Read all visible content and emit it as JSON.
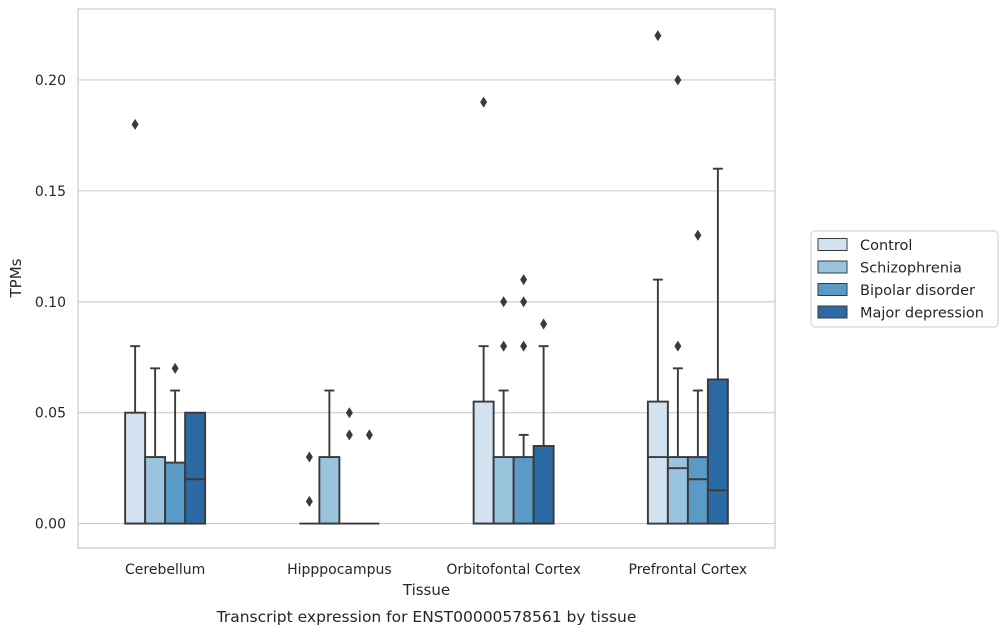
{
  "caption": "Transcript expression for ENST00000578561 by tissue",
  "chart_data": {
    "type": "box",
    "xlabel": "Tissue",
    "ylabel": "TPMs",
    "ylim": [
      -0.011,
      0.232
    ],
    "yticks": [
      "0.00",
      "0.05",
      "0.10",
      "0.15",
      "0.20"
    ],
    "grid": true,
    "legend_position": "right",
    "categories": [
      "Cerebellum",
      "Hipppocampus",
      "Orbitofontal Cortex",
      "Prefrontal Cortex"
    ],
    "series": [
      {
        "name": "Control",
        "color": "#d2e2f1",
        "boxes": [
          {
            "q1": 0.0,
            "median": 0.0,
            "q3": 0.05,
            "whisker_low": 0.0,
            "whisker_high": 0.08,
            "outliers": [
              0.18
            ]
          },
          {
            "q1": 0.0,
            "median": 0.0,
            "q3": 0.0,
            "whisker_low": 0.0,
            "whisker_high": 0.0,
            "outliers": [
              0.01,
              0.03
            ]
          },
          {
            "q1": 0.0,
            "median": 0.0,
            "q3": 0.055,
            "whisker_low": 0.0,
            "whisker_high": 0.08,
            "outliers": [
              0.19
            ]
          },
          {
            "q1": 0.0,
            "median": 0.03,
            "q3": 0.055,
            "whisker_low": 0.0,
            "whisker_high": 0.11,
            "outliers": [
              0.22
            ]
          }
        ]
      },
      {
        "name": "Schizophrenia",
        "color": "#9ac3de",
        "boxes": [
          {
            "q1": 0.0,
            "median": 0.0,
            "q3": 0.03,
            "whisker_low": 0.0,
            "whisker_high": 0.07,
            "outliers": []
          },
          {
            "q1": 0.0,
            "median": 0.0,
            "q3": 0.03,
            "whisker_low": 0.0,
            "whisker_high": 0.06,
            "outliers": []
          },
          {
            "q1": 0.0,
            "median": 0.0,
            "q3": 0.03,
            "whisker_low": 0.0,
            "whisker_high": 0.06,
            "outliers": [
              0.08,
              0.1
            ]
          },
          {
            "q1": 0.0,
            "median": 0.025,
            "q3": 0.03,
            "whisker_low": 0.0,
            "whisker_high": 0.07,
            "outliers": [
              0.08,
              0.2
            ]
          }
        ]
      },
      {
        "name": "Bipolar disorder",
        "color": "#5a9ac7",
        "boxes": [
          {
            "q1": 0.0,
            "median": 0.0,
            "q3": 0.0275,
            "whisker_low": 0.0,
            "whisker_high": 0.06,
            "outliers": [
              0.07
            ]
          },
          {
            "q1": 0.0,
            "median": 0.0,
            "q3": 0.0,
            "whisker_low": 0.0,
            "whisker_high": 0.0,
            "outliers": [
              0.04,
              0.05
            ]
          },
          {
            "q1": 0.0,
            "median": 0.0,
            "q3": 0.03,
            "whisker_low": 0.0,
            "whisker_high": 0.04,
            "outliers": [
              0.08,
              0.1,
              0.11
            ]
          },
          {
            "q1": 0.0,
            "median": 0.02,
            "q3": 0.03,
            "whisker_low": 0.0,
            "whisker_high": 0.06,
            "outliers": [
              0.13
            ]
          }
        ]
      },
      {
        "name": "Major depression",
        "color": "#2c6aa6",
        "boxes": [
          {
            "q1": 0.0,
            "median": 0.02,
            "q3": 0.05,
            "whisker_low": 0.0,
            "whisker_high": 0.05,
            "outliers": []
          },
          {
            "q1": 0.0,
            "median": 0.0,
            "q3": 0.0,
            "whisker_low": 0.0,
            "whisker_high": 0.0,
            "outliers": [
              0.04
            ]
          },
          {
            "q1": 0.0,
            "median": 0.0,
            "q3": 0.035,
            "whisker_low": 0.0,
            "whisker_high": 0.08,
            "outliers": [
              0.09
            ]
          },
          {
            "q1": 0.0,
            "median": 0.015,
            "q3": 0.065,
            "whisker_low": 0.0,
            "whisker_high": 0.16,
            "outliers": []
          }
        ]
      }
    ]
  }
}
